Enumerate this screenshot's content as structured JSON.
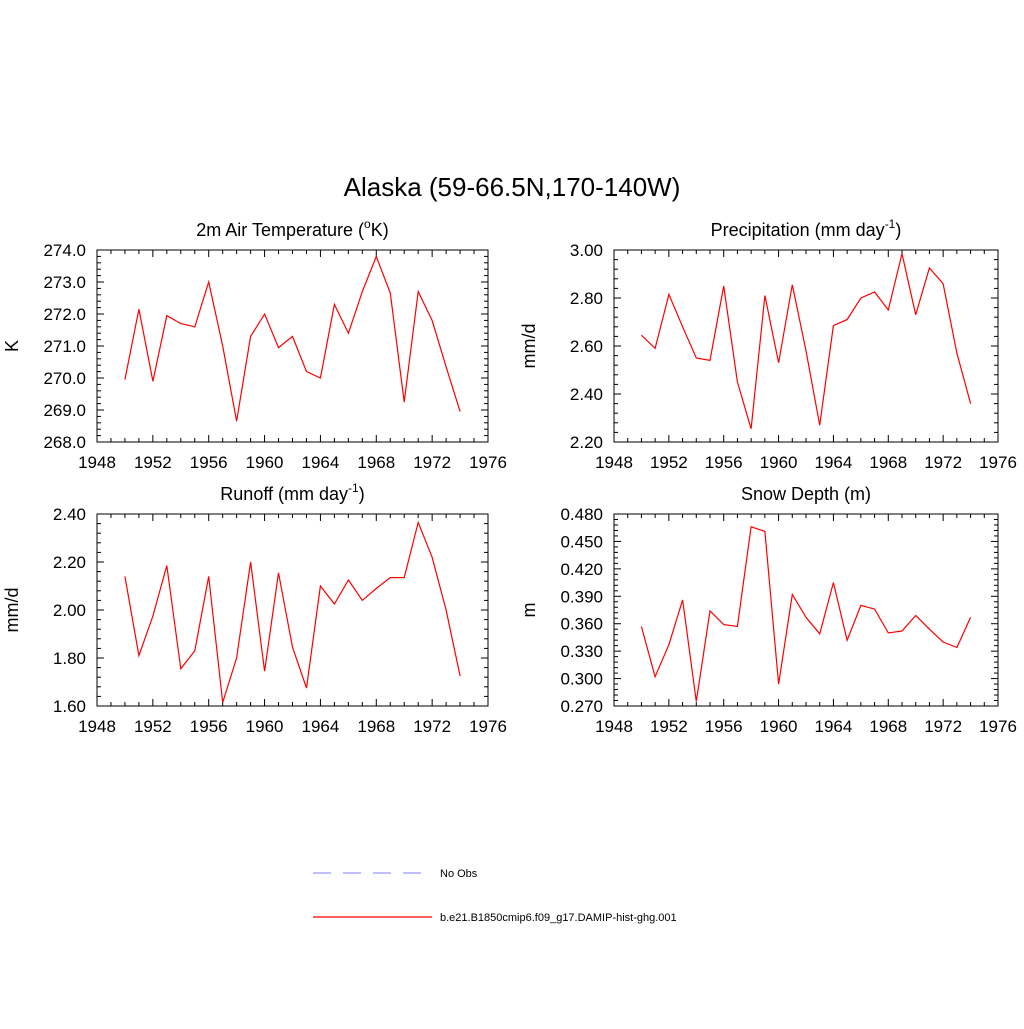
{
  "figure": {
    "title": "Alaska (59-66.5N,170-140W)"
  },
  "legend": {
    "entries": [
      {
        "label": "No Obs",
        "color": "#9999ff",
        "style": "dashed"
      },
      {
        "label": "b.e21.B1850cmip6.f09_g17.DAMIP-hist-ghg.001",
        "color": "#ff0000",
        "style": "solid"
      }
    ]
  },
  "chart_data": [
    {
      "type": "line",
      "title_main": "2m Air Temperature (",
      "title_sup": "o",
      "title_end": "K)",
      "ylabel": "K",
      "xlim": [
        1948,
        1976
      ],
      "ylim": [
        268.0,
        274.0
      ],
      "xticks": [
        1948,
        1952,
        1956,
        1960,
        1964,
        1968,
        1972,
        1976
      ],
      "yticks": [
        "268.0",
        "269.0",
        "270.0",
        "271.0",
        "272.0",
        "273.0",
        "274.0"
      ],
      "series": [
        {
          "color": "#ff0000",
          "x": [
            1950,
            1951,
            1952,
            1953,
            1954,
            1955,
            1956,
            1957,
            1958,
            1959,
            1960,
            1961,
            1962,
            1963,
            1964,
            1965,
            1966,
            1967,
            1968,
            1969,
            1970,
            1971,
            1972,
            1973,
            1974
          ],
          "values": [
            269.95,
            272.15,
            269.9,
            271.95,
            271.7,
            271.6,
            273.0,
            271.0,
            268.65,
            271.3,
            272.0,
            270.95,
            271.3,
            270.2,
            270.0,
            272.3,
            271.4,
            272.7,
            273.8,
            272.65,
            269.25,
            272.7,
            271.8,
            270.35,
            268.95
          ]
        }
      ]
    },
    {
      "type": "line",
      "title_main": "Precipitation (mm day",
      "title_sup": "-1",
      "title_end": ")",
      "ylabel": "mm/d",
      "xlim": [
        1948,
        1976
      ],
      "ylim": [
        2.2,
        3.0
      ],
      "xticks": [
        1948,
        1952,
        1956,
        1960,
        1964,
        1968,
        1972,
        1976
      ],
      "yticks": [
        "2.20",
        "2.40",
        "2.60",
        "2.80",
        "3.00"
      ],
      "series": [
        {
          "color": "#ff0000",
          "x": [
            1950,
            1951,
            1952,
            1953,
            1954,
            1955,
            1956,
            1957,
            1958,
            1959,
            1960,
            1961,
            1962,
            1963,
            1964,
            1965,
            1966,
            1967,
            1968,
            1969,
            1970,
            1971,
            1972,
            1973,
            1974
          ],
          "values": [
            2.645,
            2.59,
            2.815,
            2.68,
            2.55,
            2.54,
            2.85,
            2.45,
            2.255,
            2.81,
            2.53,
            2.855,
            2.58,
            2.27,
            2.685,
            2.71,
            2.8,
            2.825,
            2.75,
            2.985,
            2.73,
            2.925,
            2.86,
            2.57,
            2.36
          ]
        }
      ]
    },
    {
      "type": "line",
      "title_main": "Runoff (mm day",
      "title_sup": "-1",
      "title_end": ")",
      "ylabel": "mm/d",
      "xlim": [
        1948,
        1976
      ],
      "ylim": [
        1.6,
        2.4
      ],
      "xticks": [
        1948,
        1952,
        1956,
        1960,
        1964,
        1968,
        1972,
        1976
      ],
      "yticks": [
        "1.60",
        "1.80",
        "2.00",
        "2.20",
        "2.40"
      ],
      "series": [
        {
          "color": "#ff0000",
          "x": [
            1950,
            1951,
            1952,
            1953,
            1954,
            1955,
            1956,
            1957,
            1958,
            1959,
            1960,
            1961,
            1962,
            1963,
            1964,
            1965,
            1966,
            1967,
            1968,
            1969,
            1970,
            1971,
            1972,
            1973,
            1974
          ],
          "values": [
            2.14,
            1.81,
            1.975,
            2.185,
            1.755,
            1.83,
            2.14,
            1.615,
            1.8,
            2.2,
            1.745,
            2.155,
            1.845,
            1.675,
            2.1,
            2.025,
            2.125,
            2.04,
            2.09,
            2.135,
            2.135,
            2.365,
            2.22,
            2.0,
            1.725
          ]
        }
      ]
    },
    {
      "type": "line",
      "title_main": "Snow Depth (m)",
      "title_sup": "",
      "title_end": "",
      "ylabel": "m",
      "xlim": [
        1948,
        1976
      ],
      "ylim": [
        0.27,
        0.48
      ],
      "xticks": [
        1948,
        1952,
        1956,
        1960,
        1964,
        1968,
        1972,
        1976
      ],
      "yticks": [
        "0.270",
        "0.300",
        "0.330",
        "0.360",
        "0.390",
        "0.420",
        "0.450",
        "0.480"
      ],
      "series": [
        {
          "color": "#ff0000",
          "x": [
            1950,
            1951,
            1952,
            1953,
            1954,
            1955,
            1956,
            1957,
            1958,
            1959,
            1960,
            1961,
            1962,
            1963,
            1964,
            1965,
            1966,
            1967,
            1968,
            1969,
            1970,
            1971,
            1972,
            1973,
            1974
          ],
          "values": [
            0.357,
            0.302,
            0.337,
            0.386,
            0.275,
            0.374,
            0.359,
            0.357,
            0.466,
            0.461,
            0.294,
            0.392,
            0.367,
            0.349,
            0.405,
            0.342,
            0.38,
            0.376,
            0.35,
            0.352,
            0.369,
            0.354,
            0.34,
            0.334,
            0.367
          ]
        }
      ]
    }
  ]
}
